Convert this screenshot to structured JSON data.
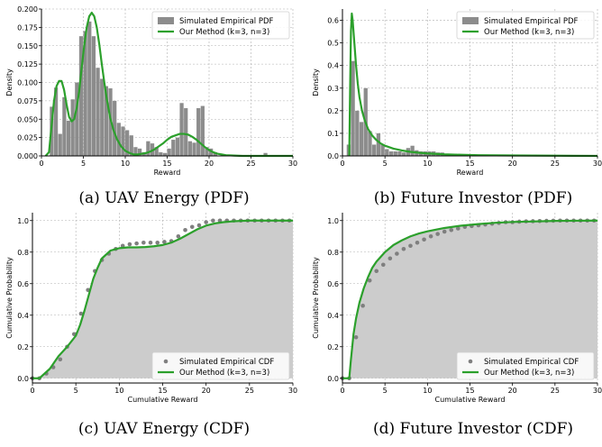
{
  "colors": {
    "curve": "#2ca02c",
    "bar": "#8c8c8c",
    "fill": "#cccccc",
    "dots": "#7f7f7f",
    "grid": "#b0b0b0"
  },
  "chart_data": [
    {
      "type": "bar",
      "caption": "(a) UAV Energy (PDF)",
      "xlabel": "Reward",
      "ylabel": "Density",
      "xlim": [
        0,
        30
      ],
      "ylim": [
        0,
        0.2
      ],
      "xticks": [
        "0",
        "5",
        "10",
        "15",
        "20",
        "25",
        "30"
      ],
      "yticks": [
        "0.000",
        "0.025",
        "0.050",
        "0.075",
        "0.100",
        "0.125",
        "0.150",
        "0.175",
        "0.200"
      ],
      "legend": {
        "position": "top-right",
        "entries": [
          "Simulated Empirical PDF",
          "Our Method (k=3, n=3)"
        ]
      },
      "bar_width": 0.5,
      "bars": {
        "x": [
          1.25,
          1.75,
          2.25,
          2.75,
          3.25,
          3.75,
          4.25,
          4.75,
          5.25,
          5.75,
          6.25,
          6.75,
          7.25,
          7.75,
          8.25,
          8.75,
          9.25,
          9.75,
          10.25,
          10.75,
          11.25,
          11.75,
          12.25,
          12.75,
          13.25,
          13.75,
          14.25,
          14.75,
          15.25,
          15.75,
          16.25,
          16.75,
          17.25,
          17.75,
          18.25,
          18.75,
          19.25,
          19.75,
          20.25,
          20.75,
          26.75
        ],
        "values": [
          0.067,
          0.093,
          0.03,
          0.08,
          0.048,
          0.077,
          0.1,
          0.163,
          0.17,
          0.183,
          0.163,
          0.12,
          0.105,
          0.095,
          0.092,
          0.075,
          0.045,
          0.04,
          0.035,
          0.028,
          0.012,
          0.01,
          0.005,
          0.02,
          0.017,
          0.012,
          0.005,
          0.004,
          0.01,
          0.022,
          0.025,
          0.072,
          0.065,
          0.02,
          0.018,
          0.065,
          0.068,
          0.012,
          0.01,
          0.005,
          0.004
        ]
      },
      "curve": {
        "name": "Our Method (k=3, n=3)",
        "x": [
          0.5,
          0.9,
          1.2,
          1.5,
          1.8,
          2.1,
          2.4,
          2.7,
          3.0,
          3.3,
          3.6,
          3.9,
          4.2,
          4.5,
          4.8,
          5.1,
          5.4,
          5.7,
          6.0,
          6.3,
          6.6,
          6.9,
          7.2,
          7.5,
          7.8,
          8.2,
          8.6,
          9.0,
          9.5,
          10.0,
          10.5,
          11.0,
          11.5,
          12.0,
          12.5,
          13.0,
          13.5,
          14.0,
          14.5,
          15.0,
          15.5,
          16.0,
          16.5,
          17.0,
          17.5,
          18.0,
          18.5,
          19.0,
          19.5,
          20.0,
          20.5,
          21.0,
          21.5,
          22.0,
          23.0,
          24.0,
          25.0,
          30.0
        ],
        "y": [
          0.0,
          0.005,
          0.04,
          0.075,
          0.095,
          0.102,
          0.102,
          0.09,
          0.07,
          0.053,
          0.047,
          0.05,
          0.065,
          0.088,
          0.12,
          0.15,
          0.175,
          0.19,
          0.195,
          0.19,
          0.175,
          0.152,
          0.125,
          0.1,
          0.077,
          0.052,
          0.035,
          0.023,
          0.013,
          0.007,
          0.004,
          0.002,
          0.002,
          0.003,
          0.004,
          0.006,
          0.009,
          0.013,
          0.017,
          0.022,
          0.026,
          0.028,
          0.03,
          0.03,
          0.029,
          0.026,
          0.022,
          0.017,
          0.012,
          0.008,
          0.005,
          0.003,
          0.002,
          0.001,
          0.0005,
          0.0,
          0.0,
          0.0
        ]
      }
    },
    {
      "type": "bar",
      "caption": "(b) Future Investor (PDF)",
      "xlabel": "Reward",
      "ylabel": "Density",
      "xlim": [
        0,
        30
      ],
      "ylim": [
        0,
        0.65
      ],
      "xticks": [
        "0",
        "5",
        "10",
        "15",
        "20",
        "25",
        "30"
      ],
      "yticks": [
        "0.0",
        "0.1",
        "0.2",
        "0.3",
        "0.4",
        "0.5",
        "0.6"
      ],
      "legend": {
        "position": "top-right",
        "entries": [
          "Simulated Empirical PDF",
          "Our Method (k=3, n=3)"
        ]
      },
      "bar_width": 0.5,
      "bars": {
        "x": [
          0.75,
          1.25,
          1.75,
          2.25,
          2.75,
          3.25,
          3.75,
          4.25,
          4.75,
          5.25,
          5.75,
          6.25,
          6.75,
          7.25,
          7.75,
          8.25,
          8.75,
          9.25,
          9.75,
          10.25,
          10.75,
          11.25,
          11.75,
          12.25,
          12.75,
          13.25,
          13.75,
          14.25,
          14.75
        ],
        "values": [
          0.05,
          0.42,
          0.2,
          0.15,
          0.3,
          0.11,
          0.05,
          0.1,
          0.05,
          0.03,
          0.02,
          0.02,
          0.02,
          0.015,
          0.035,
          0.045,
          0.025,
          0.02,
          0.02,
          0.02,
          0.02,
          0.015,
          0.015,
          0.01,
          0.01,
          0.01,
          0.008,
          0.008,
          0.005
        ]
      },
      "curve": {
        "name": "Our Method (k=3, n=3)",
        "x": [
          0.8,
          0.9,
          1.0,
          1.1,
          1.2,
          1.4,
          1.6,
          1.8,
          2.0,
          2.3,
          2.6,
          3.0,
          3.5,
          4.0,
          4.5,
          5.0,
          6.0,
          7.0,
          8.0,
          9.0,
          10.0,
          12.0,
          14.0,
          16.0,
          20.0,
          25.0,
          30.0
        ],
        "y": [
          0.0,
          0.3,
          0.55,
          0.63,
          0.6,
          0.5,
          0.4,
          0.32,
          0.26,
          0.2,
          0.16,
          0.12,
          0.09,
          0.07,
          0.055,
          0.045,
          0.032,
          0.024,
          0.018,
          0.014,
          0.011,
          0.007,
          0.005,
          0.003,
          0.002,
          0.001,
          0.0
        ]
      }
    },
    {
      "type": "scatter",
      "caption": "(c) UAV Energy (CDF)",
      "xlabel": "Cumulative Reward",
      "ylabel": "Cumulative Probability",
      "xlim": [
        0,
        30
      ],
      "ylim": [
        -0.03,
        1.05
      ],
      "xticks": [
        "0",
        "5",
        "10",
        "15",
        "20",
        "25",
        "30"
      ],
      "yticks": [
        "0.0",
        "0.2",
        "0.4",
        "0.6",
        "0.8",
        "1.0"
      ],
      "legend": {
        "position": "bottom-right",
        "entries": [
          "Simulated Empirical CDF",
          "Our Method (k=3, n=3)"
        ]
      },
      "points": {
        "name": "Simulated Empirical CDF",
        "x": [
          0,
          0.8,
          1.6,
          2.4,
          3.2,
          4.0,
          4.8,
          5.6,
          6.4,
          7.2,
          8.0,
          8.8,
          9.6,
          10.4,
          11.2,
          12.0,
          12.8,
          13.6,
          14.4,
          15.2,
          16.0,
          16.8,
          17.6,
          18.4,
          19.2,
          20.0,
          20.8,
          21.6,
          22.4,
          23.2,
          24.0,
          24.8,
          25.6,
          26.4,
          27.2,
          28.0,
          28.8,
          29.6
        ],
        "y": [
          0.0,
          0.0,
          0.03,
          0.07,
          0.12,
          0.2,
          0.28,
          0.41,
          0.56,
          0.68,
          0.75,
          0.79,
          0.82,
          0.84,
          0.85,
          0.855,
          0.86,
          0.86,
          0.86,
          0.865,
          0.87,
          0.9,
          0.94,
          0.96,
          0.97,
          0.99,
          1.0,
          1.0,
          1.0,
          1.0,
          1.0,
          1.0,
          1.0,
          1.0,
          1.0,
          1.0,
          1.0,
          1.0
        ]
      },
      "curve": {
        "name": "Our Method (k=3, n=3)",
        "x": [
          0,
          0.8,
          1.2,
          2.0,
          3.0,
          4.0,
          5.0,
          5.5,
          6.0,
          6.5,
          7.0,
          7.5,
          8.0,
          9.0,
          10.0,
          11.0,
          12.0,
          13.0,
          14.0,
          15.0,
          16.0,
          17.0,
          18.0,
          19.0,
          20.0,
          21.0,
          22.0,
          23.0,
          24.0,
          25.0,
          26.0,
          30.0
        ],
        "y": [
          0.0,
          0.0,
          0.02,
          0.06,
          0.14,
          0.2,
          0.27,
          0.34,
          0.43,
          0.53,
          0.63,
          0.7,
          0.76,
          0.81,
          0.825,
          0.83,
          0.83,
          0.832,
          0.837,
          0.845,
          0.86,
          0.885,
          0.915,
          0.945,
          0.968,
          0.982,
          0.99,
          0.995,
          0.998,
          1.0,
          1.0,
          1.0
        ]
      }
    },
    {
      "type": "scatter",
      "caption": "(d) Future Investor (CDF)",
      "xlabel": "Cumulative Reward",
      "ylabel": "Cumulative Probability",
      "xlim": [
        0,
        30
      ],
      "ylim": [
        -0.03,
        1.05
      ],
      "xticks": [
        "0",
        "5",
        "10",
        "15",
        "20",
        "25",
        "30"
      ],
      "yticks": [
        "0.0",
        "0.2",
        "0.4",
        "0.6",
        "0.8",
        "1.0"
      ],
      "legend": {
        "position": "bottom-right",
        "entries": [
          "Simulated Empirical CDF",
          "Our Method (k=3, n=3)"
        ]
      },
      "points": {
        "name": "Simulated Empirical CDF",
        "x": [
          0,
          0.8,
          1.6,
          2.4,
          3.2,
          4.0,
          4.8,
          5.6,
          6.4,
          7.2,
          8.0,
          8.8,
          9.6,
          10.4,
          11.2,
          12.0,
          12.8,
          13.6,
          14.4,
          15.2,
          16.0,
          16.8,
          17.6,
          18.4,
          19.2,
          20.0,
          20.8,
          21.6,
          22.4,
          23.2,
          24.0,
          24.8,
          25.6,
          26.4,
          27.2,
          28.0,
          28.8,
          29.6
        ],
        "y": [
          0.0,
          0.0,
          0.26,
          0.46,
          0.62,
          0.68,
          0.72,
          0.76,
          0.79,
          0.82,
          0.84,
          0.86,
          0.88,
          0.9,
          0.915,
          0.93,
          0.94,
          0.95,
          0.96,
          0.965,
          0.97,
          0.975,
          0.98,
          0.985,
          0.99,
          0.99,
          0.993,
          0.995,
          0.996,
          0.997,
          0.998,
          0.999,
          1.0,
          1.0,
          1.0,
          1.0,
          1.0,
          1.0
        ]
      },
      "curve": {
        "name": "Our Method (k=3, n=3)",
        "x": [
          0,
          0.8,
          1.0,
          1.3,
          1.6,
          2.0,
          2.5,
          3.0,
          3.5,
          4.0,
          5.0,
          6.0,
          7.0,
          8.0,
          9.0,
          10.0,
          12.0,
          14.0,
          16.0,
          18.0,
          20.0,
          25.0,
          30.0
        ],
        "y": [
          0.0,
          0.0,
          0.12,
          0.28,
          0.38,
          0.48,
          0.57,
          0.64,
          0.7,
          0.74,
          0.8,
          0.845,
          0.875,
          0.9,
          0.918,
          0.932,
          0.953,
          0.968,
          0.978,
          0.986,
          0.991,
          0.998,
          1.0
        ]
      }
    }
  ]
}
